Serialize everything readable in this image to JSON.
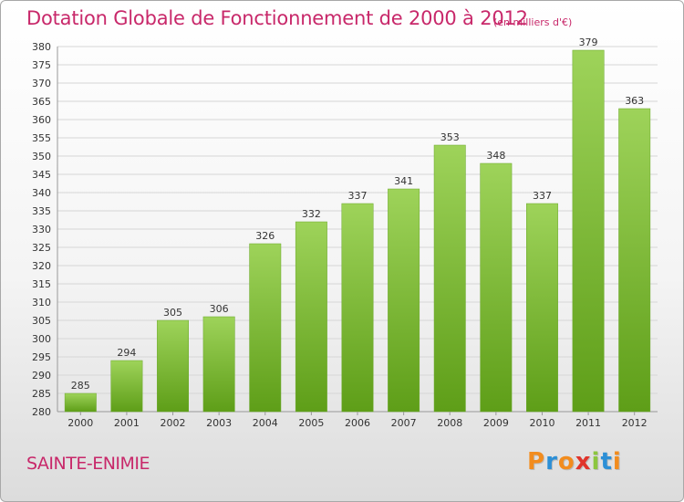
{
  "header": {
    "title": "Dotation Globale de Fonctionnement de 2000 à 2012",
    "unit": "(en milliers d'€)"
  },
  "footer": {
    "commune": "SAINTE-ENIMIE",
    "logo_text": "Proxiti"
  },
  "colors": {
    "title": "#c8286a",
    "bar_top": "#9ed35a",
    "bar_bottom": "#5e9e18",
    "logo": [
      "#f28c1e",
      "#2c8fd6",
      "#f28c1e",
      "#e0342b",
      "#8cc63f",
      "#2c8fd6",
      "#f28c1e"
    ]
  },
  "chart_data": {
    "type": "bar",
    "title": "Dotation Globale de Fonctionnement de 2000 à 2012",
    "categories": [
      "2000",
      "2001",
      "2002",
      "2003",
      "2004",
      "2005",
      "2006",
      "2007",
      "2008",
      "2009",
      "2010",
      "2011",
      "2012"
    ],
    "values": [
      285,
      294,
      305,
      306,
      326,
      332,
      337,
      341,
      353,
      348,
      337,
      379,
      363
    ],
    "ylim": [
      280,
      380
    ],
    "yticks": [
      280,
      285,
      290,
      295,
      300,
      305,
      310,
      315,
      320,
      325,
      330,
      335,
      340,
      345,
      350,
      355,
      360,
      365,
      370,
      375,
      380
    ],
    "grid": true,
    "legend": "none"
  }
}
